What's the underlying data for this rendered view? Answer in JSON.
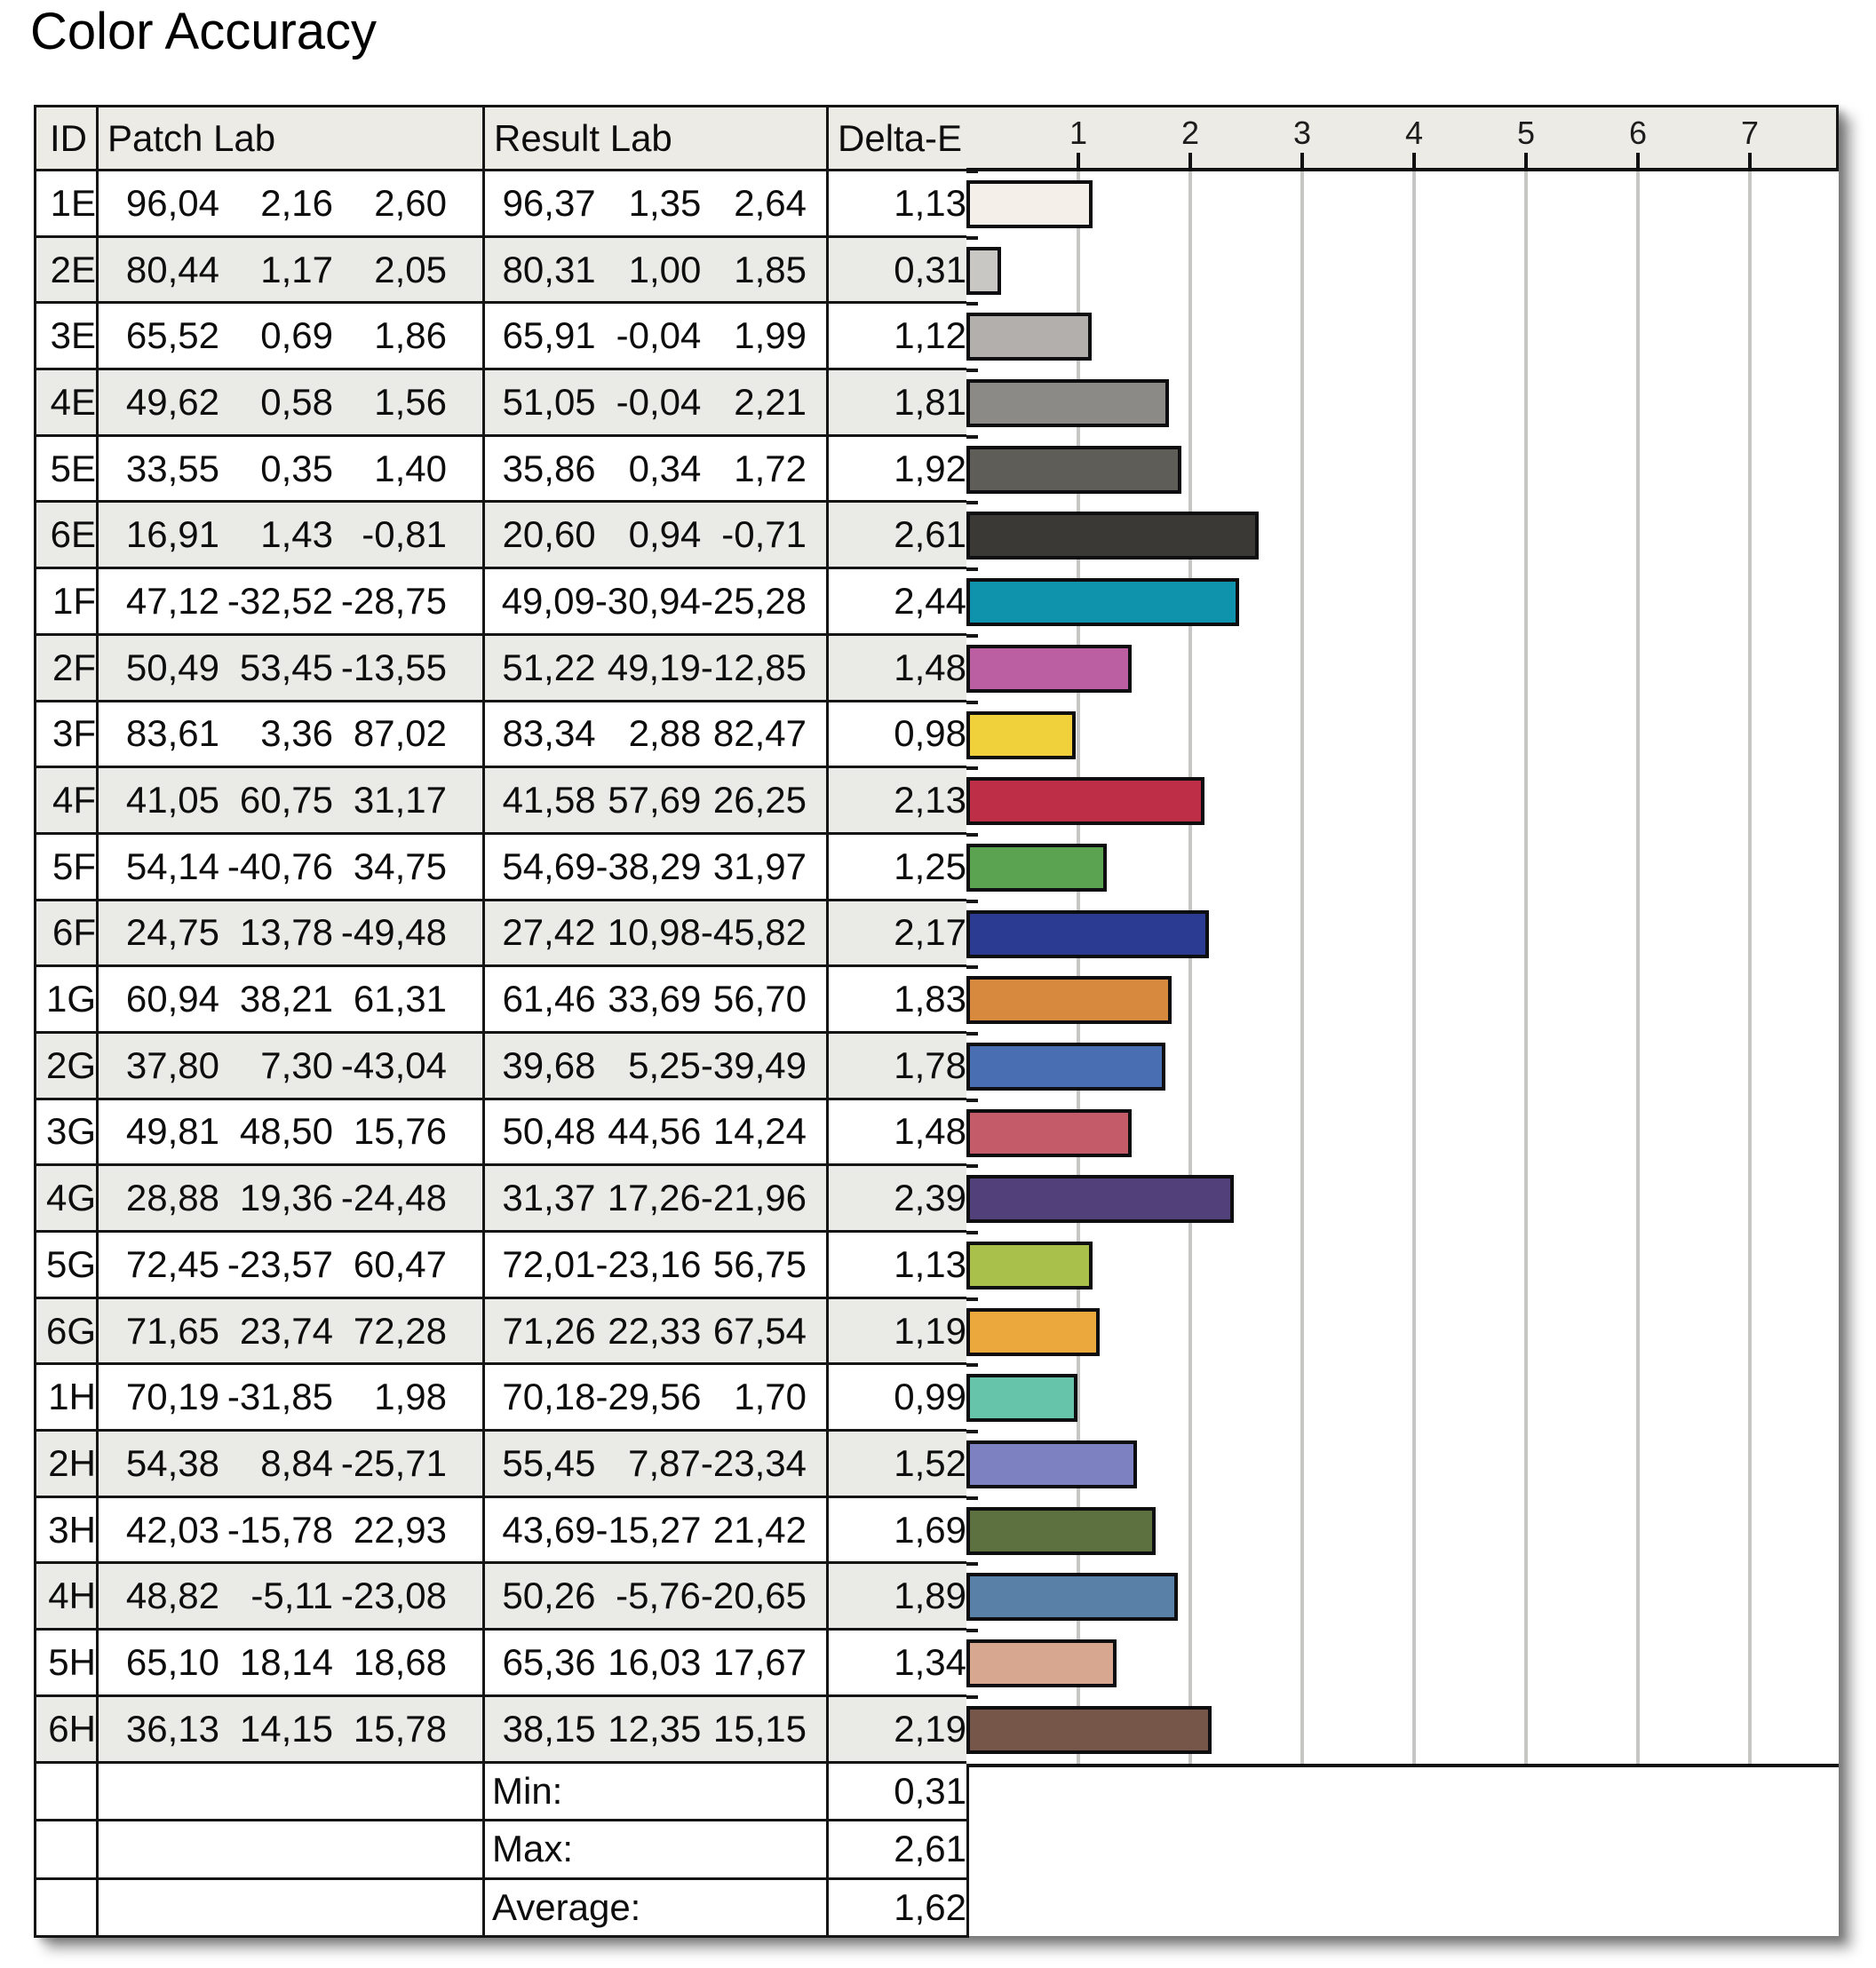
{
  "title": "Color Accuracy",
  "table": {
    "headers": {
      "id": "ID",
      "patch": "Patch Lab",
      "result": "Result Lab",
      "delta": "Delta-E"
    },
    "rows": [
      {
        "id": "1E",
        "patch": [
          "96,04",
          "2,16",
          "2,60"
        ],
        "result": [
          "96,37",
          "1,35",
          "2,64"
        ],
        "delta": "1,13"
      },
      {
        "id": "2E",
        "patch": [
          "80,44",
          "1,17",
          "2,05"
        ],
        "result": [
          "80,31",
          "1,00",
          "1,85"
        ],
        "delta": "0,31"
      },
      {
        "id": "3E",
        "patch": [
          "65,52",
          "0,69",
          "1,86"
        ],
        "result": [
          "65,91",
          "-0,04",
          "1,99"
        ],
        "delta": "1,12"
      },
      {
        "id": "4E",
        "patch": [
          "49,62",
          "0,58",
          "1,56"
        ],
        "result": [
          "51,05",
          "-0,04",
          "2,21"
        ],
        "delta": "1,81"
      },
      {
        "id": "5E",
        "patch": [
          "33,55",
          "0,35",
          "1,40"
        ],
        "result": [
          "35,86",
          "0,34",
          "1,72"
        ],
        "delta": "1,92"
      },
      {
        "id": "6E",
        "patch": [
          "16,91",
          "1,43",
          "-0,81"
        ],
        "result": [
          "20,60",
          "0,94",
          "-0,71"
        ],
        "delta": "2,61"
      },
      {
        "id": "1F",
        "patch": [
          "47,12",
          "-32,52",
          "-28,75"
        ],
        "result": [
          "49,09",
          "-30,94",
          "-25,28"
        ],
        "delta": "2,44"
      },
      {
        "id": "2F",
        "patch": [
          "50,49",
          "53,45",
          "-13,55"
        ],
        "result": [
          "51,22",
          "49,19",
          "-12,85"
        ],
        "delta": "1,48"
      },
      {
        "id": "3F",
        "patch": [
          "83,61",
          "3,36",
          "87,02"
        ],
        "result": [
          "83,34",
          "2,88",
          "82,47"
        ],
        "delta": "0,98"
      },
      {
        "id": "4F",
        "patch": [
          "41,05",
          "60,75",
          "31,17"
        ],
        "result": [
          "41,58",
          "57,69",
          "26,25"
        ],
        "delta": "2,13"
      },
      {
        "id": "5F",
        "patch": [
          "54,14",
          "-40,76",
          "34,75"
        ],
        "result": [
          "54,69",
          "-38,29",
          "31,97"
        ],
        "delta": "1,25"
      },
      {
        "id": "6F",
        "patch": [
          "24,75",
          "13,78",
          "-49,48"
        ],
        "result": [
          "27,42",
          "10,98",
          "-45,82"
        ],
        "delta": "2,17"
      },
      {
        "id": "1G",
        "patch": [
          "60,94",
          "38,21",
          "61,31"
        ],
        "result": [
          "61,46",
          "33,69",
          "56,70"
        ],
        "delta": "1,83"
      },
      {
        "id": "2G",
        "patch": [
          "37,80",
          "7,30",
          "-43,04"
        ],
        "result": [
          "39,68",
          "5,25",
          "-39,49"
        ],
        "delta": "1,78"
      },
      {
        "id": "3G",
        "patch": [
          "49,81",
          "48,50",
          "15,76"
        ],
        "result": [
          "50,48",
          "44,56",
          "14,24"
        ],
        "delta": "1,48"
      },
      {
        "id": "4G",
        "patch": [
          "28,88",
          "19,36",
          "-24,48"
        ],
        "result": [
          "31,37",
          "17,26",
          "-21,96"
        ],
        "delta": "2,39"
      },
      {
        "id": "5G",
        "patch": [
          "72,45",
          "-23,57",
          "60,47"
        ],
        "result": [
          "72,01",
          "-23,16",
          "56,75"
        ],
        "delta": "1,13"
      },
      {
        "id": "6G",
        "patch": [
          "71,65",
          "23,74",
          "72,28"
        ],
        "result": [
          "71,26",
          "22,33",
          "67,54"
        ],
        "delta": "1,19"
      },
      {
        "id": "1H",
        "patch": [
          "70,19",
          "-31,85",
          "1,98"
        ],
        "result": [
          "70,18",
          "-29,56",
          "1,70"
        ],
        "delta": "0,99"
      },
      {
        "id": "2H",
        "patch": [
          "54,38",
          "8,84",
          "-25,71"
        ],
        "result": [
          "55,45",
          "7,87",
          "-23,34"
        ],
        "delta": "1,52"
      },
      {
        "id": "3H",
        "patch": [
          "42,03",
          "-15,78",
          "22,93"
        ],
        "result": [
          "43,69",
          "-15,27",
          "21,42"
        ],
        "delta": "1,69"
      },
      {
        "id": "4H",
        "patch": [
          "48,82",
          "-5,11",
          "-23,08"
        ],
        "result": [
          "50,26",
          "-5,76",
          "-20,65"
        ],
        "delta": "1,89"
      },
      {
        "id": "5H",
        "patch": [
          "65,10",
          "18,14",
          "18,68"
        ],
        "result": [
          "65,36",
          "16,03",
          "17,67"
        ],
        "delta": "1,34"
      },
      {
        "id": "6H",
        "patch": [
          "36,13",
          "14,15",
          "15,78"
        ],
        "result": [
          "38,15",
          "12,35",
          "15,15"
        ],
        "delta": "2,19"
      }
    ],
    "summary": [
      {
        "label": "Min:",
        "value": "0,31"
      },
      {
        "label": "Max:",
        "value": "2,61"
      },
      {
        "label": "Average:",
        "value": "1,62"
      }
    ]
  },
  "chart_data": {
    "type": "bar",
    "orientation": "horizontal",
    "title": "Color Accuracy",
    "xlabel": "Delta-E",
    "categories": [
      "1E",
      "2E",
      "3E",
      "4E",
      "5E",
      "6E",
      "1F",
      "2F",
      "3F",
      "4F",
      "5F",
      "6F",
      "1G",
      "2G",
      "3G",
      "4G",
      "5G",
      "6G",
      "1H",
      "2H",
      "3H",
      "4H",
      "5H",
      "6H"
    ],
    "values": [
      1.13,
      0.31,
      1.12,
      1.81,
      1.92,
      2.61,
      2.44,
      1.48,
      0.98,
      2.13,
      1.25,
      2.17,
      1.83,
      1.78,
      1.48,
      2.39,
      1.13,
      1.19,
      0.99,
      1.52,
      1.69,
      1.89,
      1.34,
      2.19
    ],
    "bar_colors": [
      "#f4efe8",
      "#c9c7c4",
      "#b2afac",
      "#8b8a86",
      "#5f5d57",
      "#3a3936",
      "#0f93ad",
      "#bb5fa2",
      "#f0d03b",
      "#bf2e47",
      "#5ca351",
      "#2c3b92",
      "#d78a3e",
      "#4a6eb2",
      "#c35b69",
      "#514079",
      "#a9c04a",
      "#eba93d",
      "#66c4aa",
      "#7e81c1",
      "#5c7040",
      "#5980a7",
      "#d7a78f",
      "#765648"
    ],
    "x_ticks": [
      "1",
      "2",
      "3",
      "4",
      "5",
      "6",
      "7"
    ],
    "xlim": [
      0,
      7.8
    ],
    "grid": true,
    "min": 0.31,
    "max": 2.61,
    "average": 1.62
  },
  "colors": {
    "header_bg": "#ecebe6",
    "stripe_bg": "#eaeae7",
    "border": "#151515",
    "gridline": "#c6c6c4"
  }
}
